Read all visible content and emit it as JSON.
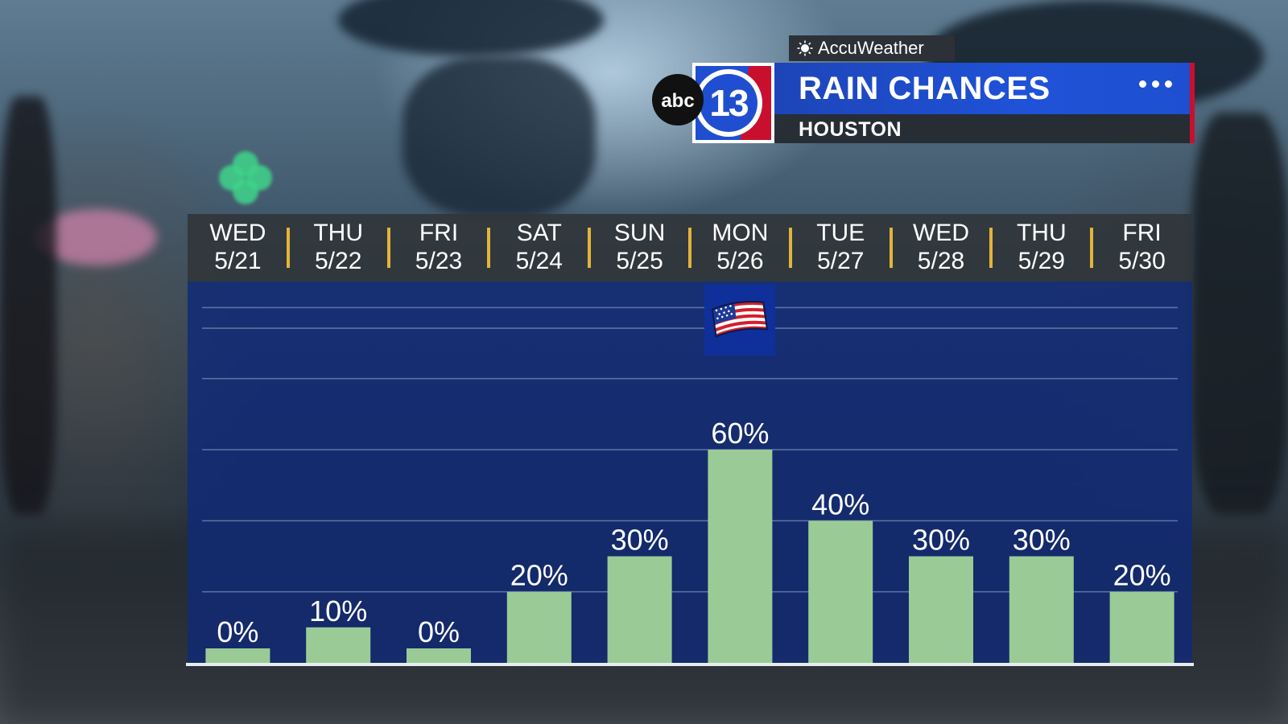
{
  "header": {
    "brand": "AccuWeather",
    "station_logo": "abc 13",
    "title": "RAIN CHANCES",
    "subtitle": "HOUSTON",
    "icons": [
      "sun-icon",
      "more-dots-icon"
    ]
  },
  "holiday_marker": {
    "icon": "american-flag-icon",
    "day_index": 5
  },
  "colors": {
    "bar": "#9acb96",
    "plot_background": "#1a2f7a",
    "separator": "#e3b43a",
    "title_bar": "#1f4fd0"
  },
  "chart_data": {
    "type": "bar",
    "title": "RAIN CHANCES",
    "categories": [
      {
        "day": "WED",
        "date": "5/21"
      },
      {
        "day": "THU",
        "date": "5/22"
      },
      {
        "day": "FRI",
        "date": "5/23"
      },
      {
        "day": "SAT",
        "date": "5/24"
      },
      {
        "day": "SUN",
        "date": "5/25"
      },
      {
        "day": "MON",
        "date": "5/26"
      },
      {
        "day": "TUE",
        "date": "5/27"
      },
      {
        "day": "WED",
        "date": "5/28"
      },
      {
        "day": "THU",
        "date": "5/29"
      },
      {
        "day": "FRI",
        "date": "5/30"
      }
    ],
    "values": [
      0,
      10,
      0,
      20,
      30,
      60,
      40,
      30,
      30,
      20
    ],
    "value_labels": [
      "0%",
      "10%",
      "0%",
      "20%",
      "30%",
      "60%",
      "40%",
      "30%",
      "30%",
      "20%"
    ],
    "ylim": [
      0,
      100
    ],
    "grid": true
  }
}
